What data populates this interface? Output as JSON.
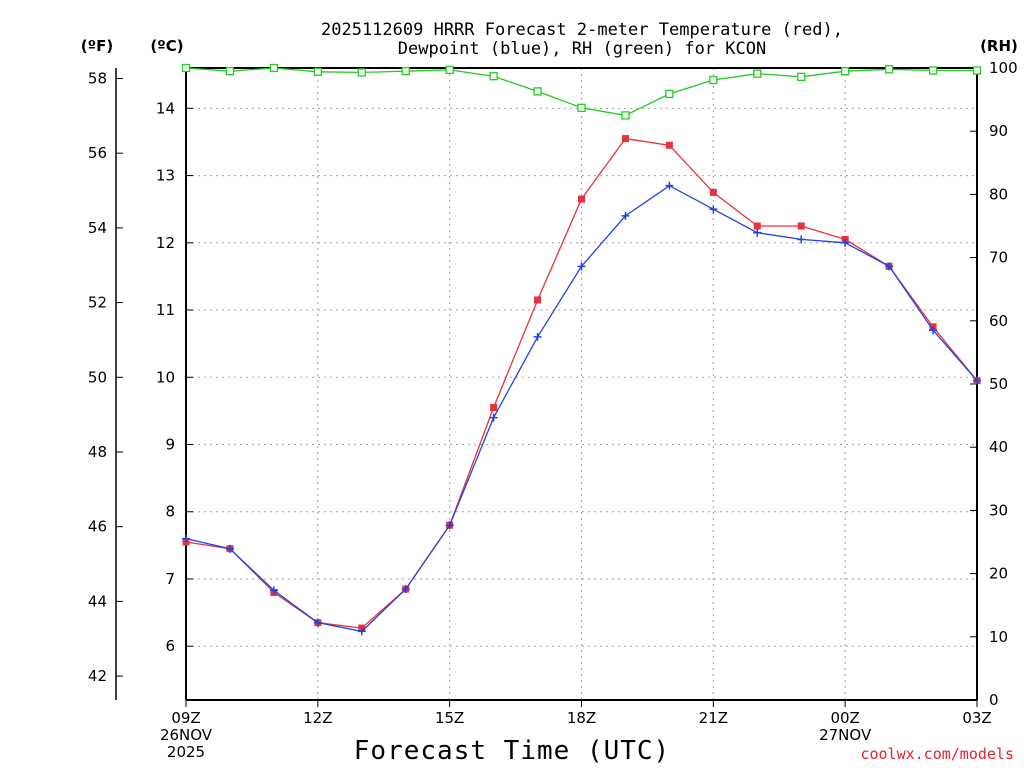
{
  "chart_data": {
    "type": "line",
    "title_line1": "2025112609 HRRR Forecast 2-meter Temperature (red),",
    "title_line2": "Dewpoint (blue), RH (green) for KCON",
    "xlabel": "Forecast Time (UTC)",
    "credit": "coolwx.com/models",
    "units": {
      "fahrenheit": "(ºF)",
      "celsius": "(ºC)",
      "rh": "(RH)"
    },
    "x_hours": [
      0,
      1,
      2,
      3,
      4,
      5,
      6,
      7,
      8,
      9,
      10,
      11,
      12,
      13,
      14,
      15,
      16,
      17,
      18
    ],
    "xlim": [
      0,
      18
    ],
    "x_ticks": [
      {
        "hour": 0,
        "lines": [
          "09Z",
          "26NOV",
          "2025"
        ]
      },
      {
        "hour": 3,
        "lines": [
          "12Z"
        ]
      },
      {
        "hour": 6,
        "lines": [
          "15Z"
        ]
      },
      {
        "hour": 9,
        "lines": [
          "18Z"
        ]
      },
      {
        "hour": 12,
        "lines": [
          "21Z"
        ]
      },
      {
        "hour": 15,
        "lines": [
          "00Z",
          "27NOV"
        ]
      },
      {
        "hour": 18,
        "lines": [
          "03Z"
        ]
      }
    ],
    "celsius_axis": {
      "lim": [
        5.2,
        14.6
      ],
      "ticks": [
        6,
        7,
        8,
        9,
        10,
        11,
        12,
        13,
        14
      ]
    },
    "fahrenheit_axis": {
      "lim": [
        41.36,
        58.28
      ],
      "ticks": [
        42,
        44,
        46,
        48,
        50,
        52,
        54,
        56,
        58
      ]
    },
    "rh_axis": {
      "lim": [
        0,
        100
      ],
      "ticks": [
        0,
        10,
        20,
        30,
        40,
        50,
        60,
        70,
        80,
        90,
        100
      ]
    },
    "series": [
      {
        "name": "Temperature",
        "axis": "celsius",
        "color": "#e8323c",
        "marker": "square-filled",
        "values": [
          7.55,
          7.45,
          6.8,
          6.35,
          6.27,
          6.85,
          7.8,
          9.55,
          11.15,
          12.65,
          13.55,
          13.45,
          12.75,
          12.25,
          12.25,
          12.05,
          11.65,
          10.75,
          9.95
        ]
      },
      {
        "name": "Dewpoint",
        "axis": "celsius",
        "color": "#2244dd",
        "marker": "plus",
        "values": [
          7.6,
          7.45,
          6.83,
          6.35,
          6.22,
          6.85,
          7.8,
          9.4,
          10.6,
          11.65,
          12.4,
          12.85,
          12.5,
          12.15,
          12.05,
          12.0,
          11.65,
          10.7,
          9.95
        ]
      },
      {
        "name": "RH",
        "axis": "rh",
        "color": "#22cc22",
        "marker": "square-open",
        "values": [
          100,
          99.5,
          100,
          99.4,
          99.3,
          99.5,
          99.7,
          98.7,
          96.3,
          93.7,
          92.5,
          95.9,
          98.1,
          99.1,
          98.6,
          99.5,
          99.8,
          99.6,
          99.6
        ]
      }
    ]
  }
}
